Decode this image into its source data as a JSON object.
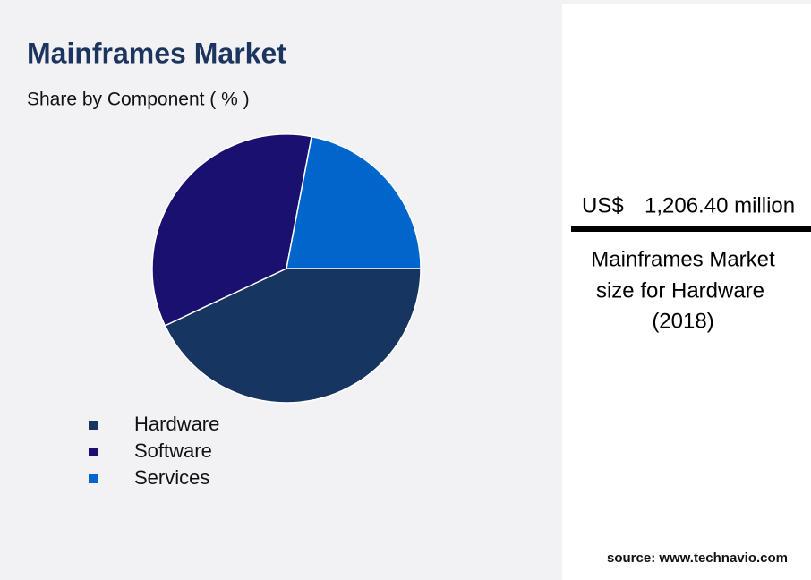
{
  "chart_data": {
    "type": "pie",
    "title": "Mainframes Market",
    "subtitle": "Share by Component ( % )",
    "categories": [
      "Hardware",
      "Software",
      "Services"
    ],
    "values": [
      43,
      35,
      22
    ],
    "colors": [
      "#163560",
      "#1a1070",
      "#0066cc"
    ]
  },
  "callout": {
    "currency": "US$",
    "amount": "1,206.40 million",
    "caption": [
      "Mainframes Market",
      "size for Hardware",
      "(2018)"
    ]
  },
  "source": "source: www.technavio.com"
}
